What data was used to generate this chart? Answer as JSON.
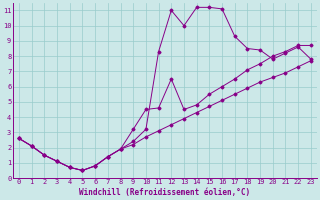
{
  "xlabel": "Windchill (Refroidissement éolien,°C)",
  "xlim": [
    -0.5,
    23.5
  ],
  "ylim": [
    0,
    11.5
  ],
  "xticks": [
    0,
    1,
    2,
    3,
    4,
    5,
    6,
    7,
    8,
    9,
    10,
    11,
    12,
    13,
    14,
    15,
    16,
    17,
    18,
    19,
    20,
    21,
    22,
    23
  ],
  "yticks": [
    0,
    1,
    2,
    3,
    4,
    5,
    6,
    7,
    8,
    9,
    10,
    11
  ],
  "bg_color": "#cce8e8",
  "line_color": "#880088",
  "line1_x": [
    0,
    1,
    2,
    3,
    4,
    5,
    6,
    7,
    8,
    9,
    10,
    11,
    12,
    13,
    14,
    15,
    16,
    17,
    18,
    19,
    20,
    21,
    22,
    23
  ],
  "line1_y": [
    2.6,
    2.1,
    1.5,
    1.1,
    0.7,
    0.5,
    0.8,
    1.4,
    1.9,
    2.2,
    2.7,
    3.1,
    3.5,
    3.9,
    4.3,
    4.7,
    5.1,
    5.5,
    5.9,
    6.3,
    6.6,
    6.9,
    7.3,
    7.7
  ],
  "line2_x": [
    0,
    1,
    2,
    3,
    4,
    5,
    6,
    7,
    8,
    9,
    10,
    11,
    12,
    13,
    14,
    15,
    16,
    17,
    18,
    19,
    20,
    21,
    22,
    23
  ],
  "line2_y": [
    2.6,
    2.1,
    1.5,
    1.1,
    0.7,
    0.5,
    0.8,
    1.4,
    1.9,
    2.4,
    3.2,
    8.3,
    11.0,
    10.0,
    11.2,
    11.2,
    11.1,
    9.3,
    8.5,
    8.4,
    7.8,
    8.2,
    8.6,
    7.8
  ],
  "line3_x": [
    0,
    1,
    2,
    3,
    4,
    5,
    6,
    7,
    8,
    9,
    10,
    11,
    12,
    13,
    14,
    15,
    16,
    17,
    18,
    19,
    20,
    21,
    22,
    23
  ],
  "line3_y": [
    2.6,
    2.1,
    1.5,
    1.1,
    0.7,
    0.5,
    0.8,
    1.4,
    1.9,
    3.2,
    4.5,
    4.6,
    6.5,
    4.5,
    4.8,
    5.5,
    6.0,
    6.5,
    7.1,
    7.5,
    8.0,
    8.3,
    8.7,
    8.7
  ],
  "grid_color": "#99cccc",
  "tick_fontsize": 5.0,
  "label_fontsize": 5.5,
  "spine_color": "#880088"
}
